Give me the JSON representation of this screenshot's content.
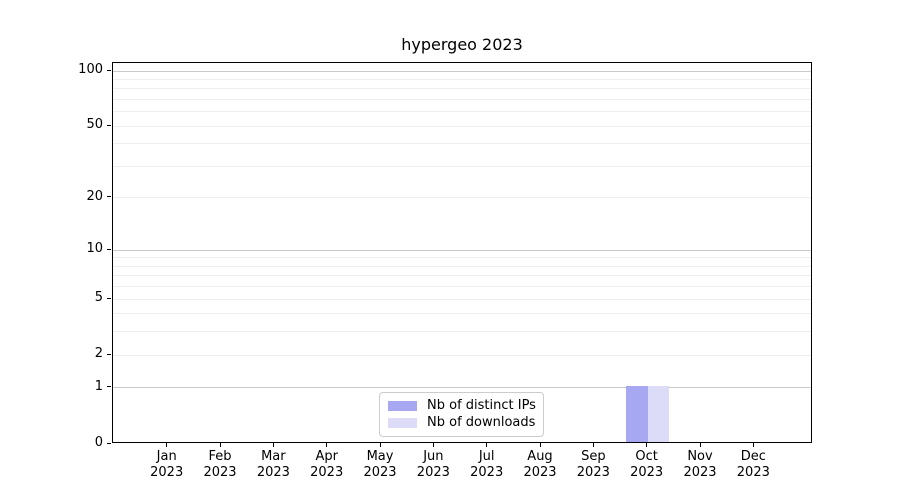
{
  "figure": {
    "title": "hypergeo 2023"
  },
  "chart_data": {
    "type": "bar",
    "title": "hypergeo 2023",
    "categories": [
      "Jan 2023",
      "Feb 2023",
      "Mar 2023",
      "Apr 2023",
      "May 2023",
      "Jun 2023",
      "Jul 2023",
      "Aug 2023",
      "Sep 2023",
      "Oct 2023",
      "Nov 2023",
      "Dec 2023"
    ],
    "series": [
      {
        "name": "Nb of distinct IPs",
        "color": "#a8a8f2",
        "values": [
          0,
          0,
          0,
          0,
          0,
          0,
          0,
          0,
          0,
          1,
          0,
          0
        ]
      },
      {
        "name": "Nb of downloads",
        "color": "#dcdcf8",
        "values": [
          0,
          0,
          0,
          0,
          0,
          0,
          0,
          0,
          0,
          1,
          0,
          0
        ]
      }
    ],
    "yscale": "log1p",
    "ylim": [
      0,
      100
    ],
    "yticks": [
      0,
      1,
      2,
      5,
      10,
      20,
      50,
      100
    ],
    "yticks_minor": [
      3,
      4,
      6,
      7,
      8,
      9,
      30,
      40,
      60,
      70,
      80,
      90
    ],
    "grid_decades": [
      1,
      10,
      100
    ],
    "grid": "horizontal",
    "legend_position": "bottom-center",
    "colors": {
      "grid_major": "#c9c9c9",
      "grid_minor": "#efefef",
      "axis": "#000000",
      "legend_border": "#cccccc",
      "background": "#ffffff"
    }
  }
}
